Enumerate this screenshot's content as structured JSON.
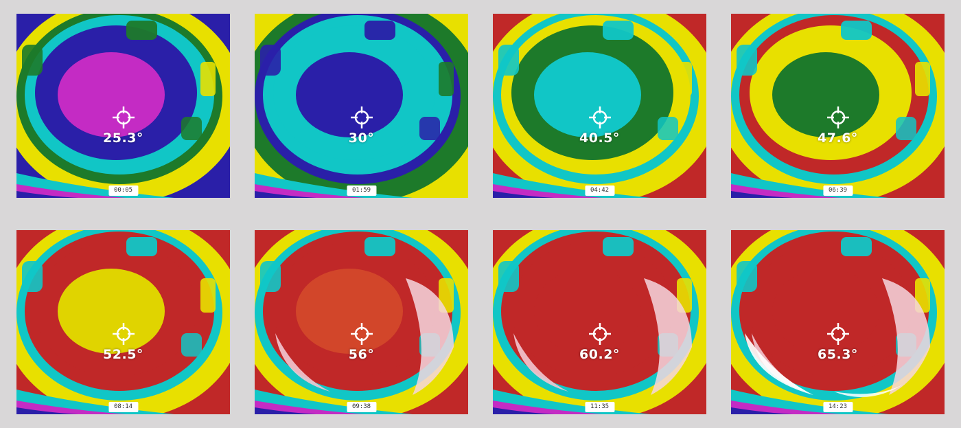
{
  "frames": [
    {
      "reading": "25.3°",
      "time": "00:05",
      "palette": {
        "bg": "#2a1fa8",
        "outer": "#11c6c6",
        "mid": "#2a1fa8",
        "core": "#c42bc4",
        "edge": "#e8e000",
        "accent": "#1d7a2a"
      }
    },
    {
      "reading": "30°",
      "time": "01:59",
      "palette": {
        "bg": "#e8e000",
        "outer": "#11c6c6",
        "mid": "#11c6c6",
        "core": "#2a1fa8",
        "edge": "#1d7a2a",
        "accent": "#2a1fa8"
      }
    },
    {
      "reading": "40.5°",
      "time": "04:42",
      "palette": {
        "bg": "#c02828",
        "outer": "#e8e000",
        "mid": "#1d7a2a",
        "core": "#11c6c6",
        "edge": "#e8e000",
        "accent": "#11c6c6"
      }
    },
    {
      "reading": "47.6°",
      "time": "06:39",
      "palette": {
        "bg": "#c02828",
        "outer": "#c02828",
        "mid": "#e8e000",
        "core": "#1d7a2a",
        "edge": "#e8e000",
        "accent": "#11c6c6"
      }
    },
    {
      "reading": "52.5°",
      "time": "08:14",
      "palette": {
        "bg": "#c02828",
        "outer": "#c02828",
        "mid": "#c02828",
        "core": "#e0d400",
        "edge": "#e8e000",
        "accent": "#11c6c6"
      }
    },
    {
      "reading": "56°",
      "time": "09:38",
      "palette": {
        "bg": "#c02828",
        "outer": "#c02828",
        "mid": "#c02828",
        "core": "#d2462a",
        "edge": "#e8e000",
        "accent": "#11c6c6"
      }
    },
    {
      "reading": "60.2°",
      "time": "11:35",
      "palette": {
        "bg": "#c02828",
        "outer": "#c02828",
        "mid": "#c02828",
        "core": "#c02828",
        "edge": "#e8e000",
        "accent": "#11c6c6"
      }
    },
    {
      "reading": "65.3°",
      "time": "14:23",
      "palette": {
        "bg": "#c02828",
        "outer": "#c02828",
        "mid": "#c02828",
        "core": "#c02828",
        "edge": "#e8e000",
        "accent": "#11c6c6"
      }
    }
  ]
}
